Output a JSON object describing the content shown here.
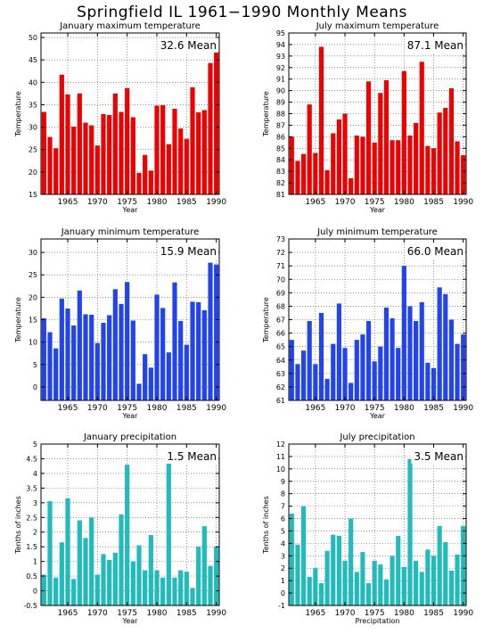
{
  "title": "Springfield IL   1961−1990 Monthly Means",
  "chart_data": [
    {
      "type": "bar",
      "title": "January maximum temperature",
      "ylabel": "Temperature",
      "xlabel": "Year",
      "mean_label": "32.6 Mean",
      "color": "#ee0000",
      "ylim": [
        15,
        51
      ],
      "yticks": [
        15,
        20,
        25,
        30,
        35,
        40,
        45,
        50
      ],
      "xticks": [
        1965,
        1970,
        1975,
        1980,
        1985,
        1990
      ],
      "x": [
        1961,
        1962,
        1963,
        1964,
        1965,
        1966,
        1967,
        1968,
        1969,
        1970,
        1971,
        1972,
        1973,
        1974,
        1975,
        1976,
        1977,
        1978,
        1979,
        1980,
        1981,
        1982,
        1983,
        1984,
        1985,
        1986,
        1987,
        1988,
        1989,
        1990
      ],
      "values": [
        33.4,
        27.8,
        25.3,
        41.7,
        37.3,
        30.1,
        37.5,
        31.0,
        30.4,
        25.9,
        32.9,
        32.7,
        37.5,
        33.4,
        38.7,
        32.2,
        19.8,
        23.8,
        20.3,
        34.8,
        34.9,
        26.2,
        34.1,
        29.7,
        27.4,
        38.9,
        33.3,
        33.8,
        44.3,
        47.0
      ]
    },
    {
      "type": "bar",
      "title": "July maximum temperature",
      "ylabel": "Temperature",
      "xlabel": "Year",
      "mean_label": "87.1 Mean",
      "color": "#ee0000",
      "ylim": [
        81,
        95
      ],
      "yticks": [
        81,
        82,
        83,
        84,
        85,
        86,
        87,
        88,
        89,
        90,
        91,
        92,
        93,
        94,
        95
      ],
      "xticks": [
        1965,
        1970,
        1975,
        1980,
        1985,
        1990
      ],
      "x": [
        1961,
        1962,
        1963,
        1964,
        1965,
        1966,
        1967,
        1968,
        1969,
        1970,
        1971,
        1972,
        1973,
        1974,
        1975,
        1976,
        1977,
        1978,
        1979,
        1980,
        1981,
        1982,
        1983,
        1984,
        1985,
        1986,
        1987,
        1988,
        1989,
        1990
      ],
      "values": [
        86.0,
        83.9,
        84.5,
        88.8,
        84.6,
        93.8,
        83.1,
        86.3,
        87.5,
        88.0,
        82.4,
        86.1,
        86.0,
        90.8,
        85.5,
        89.8,
        90.9,
        85.7,
        85.7,
        91.7,
        86.1,
        87.2,
        92.5,
        85.2,
        85.0,
        88.1,
        88.5,
        90.2,
        85.6,
        84.4
      ]
    },
    {
      "type": "bar",
      "title": "January minimum temperature",
      "ylabel": "Temperature",
      "xlabel": "Year",
      "mean_label": "15.9 Mean",
      "color": "#2244ee",
      "ylim": [
        -3,
        33
      ],
      "yticks": [
        0,
        5,
        10,
        15,
        20,
        25,
        30
      ],
      "xticks": [
        1965,
        1970,
        1975,
        1980,
        1985,
        1990
      ],
      "x": [
        1961,
        1962,
        1963,
        1964,
        1965,
        1966,
        1967,
        1968,
        1969,
        1970,
        1971,
        1972,
        1973,
        1974,
        1975,
        1976,
        1977,
        1978,
        1979,
        1980,
        1981,
        1982,
        1983,
        1984,
        1985,
        1986,
        1987,
        1988,
        1989,
        1990
      ],
      "values": [
        15.3,
        12.2,
        8.6,
        19.7,
        17.5,
        13.7,
        21.5,
        16.2,
        16.1,
        9.8,
        14.3,
        16.0,
        21.8,
        18.5,
        23.4,
        14.8,
        0.7,
        7.3,
        4.3,
        20.6,
        17.6,
        7.7,
        23.3,
        14.7,
        9.4,
        19.0,
        18.9,
        17.1,
        27.7,
        27.3
      ]
    },
    {
      "type": "bar",
      "title": "July minimum temperature",
      "ylabel": "Temperature",
      "xlabel": "Year",
      "mean_label": "66.0 Mean",
      "color": "#2244ee",
      "ylim": [
        61,
        73
      ],
      "yticks": [
        61,
        62,
        63,
        64,
        65,
        66,
        67,
        68,
        69,
        70,
        71,
        72,
        73
      ],
      "xticks": [
        1965,
        1970,
        1975,
        1980,
        1985,
        1990
      ],
      "x": [
        1961,
        1962,
        1963,
        1964,
        1965,
        1966,
        1967,
        1968,
        1969,
        1970,
        1971,
        1972,
        1973,
        1974,
        1975,
        1976,
        1977,
        1978,
        1979,
        1980,
        1981,
        1982,
        1983,
        1984,
        1985,
        1986,
        1987,
        1988,
        1989,
        1990
      ],
      "values": [
        65.5,
        63.7,
        64.7,
        66.9,
        63.7,
        67.5,
        62.6,
        65.2,
        68.2,
        64.9,
        62.3,
        65.5,
        65.9,
        66.9,
        63.9,
        65.0,
        67.9,
        67.1,
        64.9,
        71.0,
        68.0,
        66.9,
        68.3,
        63.8,
        63.4,
        69.4,
        68.9,
        67.0,
        65.2,
        65.9
      ]
    },
    {
      "type": "bar",
      "title": "January precipitation",
      "ylabel": "Tenths of inches",
      "xlabel": "Year",
      "mean_label": "1.5 Mean",
      "color": "#22bbbb",
      "ylim": [
        -0.5,
        5
      ],
      "yticks": [
        -0.5,
        0,
        0.5,
        1,
        1.5,
        2,
        2.5,
        3,
        3.5,
        4,
        4.5,
        5
      ],
      "xticks": [
        1965,
        1970,
        1975,
        1980,
        1985,
        1990
      ],
      "x": [
        1961,
        1962,
        1963,
        1964,
        1965,
        1966,
        1967,
        1968,
        1969,
        1970,
        1971,
        1972,
        1973,
        1974,
        1975,
        1976,
        1977,
        1978,
        1979,
        1980,
        1981,
        1982,
        1983,
        1984,
        1985,
        1986,
        1987,
        1988,
        1989,
        1990
      ],
      "values": [
        0.55,
        3.05,
        0.45,
        1.65,
        3.15,
        0.4,
        2.4,
        1.8,
        2.5,
        0.55,
        1.25,
        1.05,
        1.3,
        2.6,
        4.3,
        1.0,
        1.55,
        0.7,
        1.9,
        0.7,
        0.45,
        4.5,
        0.45,
        0.7,
        0.65,
        0.1,
        1.5,
        2.2,
        0.85,
        1.5
      ]
    },
    {
      "type": "bar",
      "title": "July precipitation",
      "ylabel": "Tenths of inches",
      "xlabel": "Precipitation",
      "mean_label": "3.5 Mean",
      "color": "#22bbbb",
      "ylim": [
        -1,
        12
      ],
      "yticks": [
        -1,
        0,
        1,
        2,
        3,
        4,
        5,
        6,
        7,
        8,
        9,
        10,
        11,
        12
      ],
      "xticks": [
        1965,
        1970,
        1975,
        1980,
        1985,
        1990
      ],
      "x": [
        1961,
        1962,
        1963,
        1964,
        1965,
        1966,
        1967,
        1968,
        1969,
        1970,
        1971,
        1972,
        1973,
        1974,
        1975,
        1976,
        1977,
        1978,
        1979,
        1980,
        1981,
        1982,
        1983,
        1984,
        1985,
        1986,
        1987,
        1988,
        1989,
        1990
      ],
      "values": [
        6.4,
        3.9,
        7.0,
        1.3,
        2.0,
        0.8,
        3.4,
        4.7,
        4.6,
        2.6,
        6.0,
        1.7,
        3.3,
        0.8,
        2.6,
        2.3,
        1.1,
        3.0,
        4.6,
        2.1,
        10.8,
        2.6,
        1.7,
        3.5,
        3.0,
        5.4,
        4.1,
        1.8,
        3.1,
        5.4
      ]
    }
  ]
}
